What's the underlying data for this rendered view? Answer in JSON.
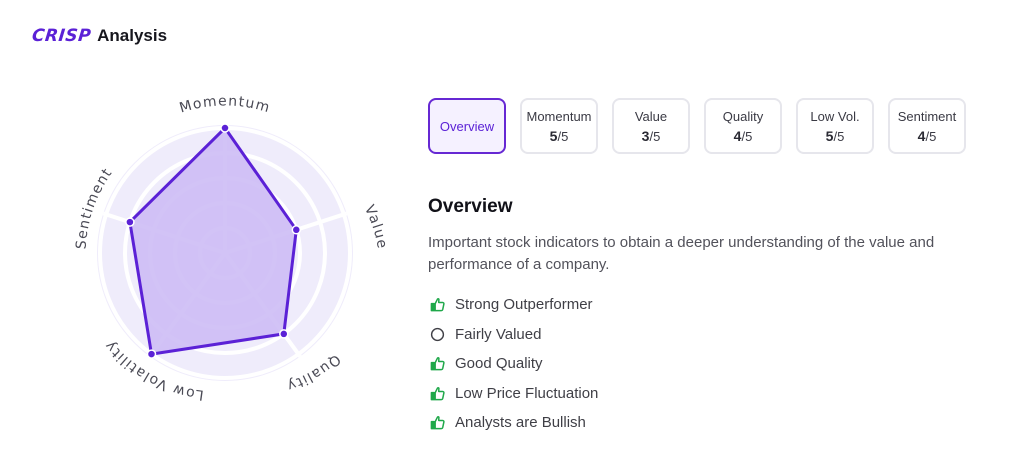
{
  "header": {
    "logo_text": "CRISP",
    "title": "Analysis"
  },
  "colors": {
    "accent": "#6628d3",
    "positive": "#1fa84a",
    "radar_fill": "#cdbdf5",
    "radar_bg": "#efecfb"
  },
  "radar": {
    "max_score": 5,
    "axes": [
      {
        "label": "Momentum",
        "score": 5
      },
      {
        "label": "Value",
        "score": 3
      },
      {
        "label": "Quality",
        "score": 4
      },
      {
        "label": "Low Volatility",
        "score": 5
      },
      {
        "label": "Sentiment",
        "score": 4
      }
    ]
  },
  "tabs": [
    {
      "label": "Overview",
      "score": "",
      "max": "",
      "active": true
    },
    {
      "label": "Momentum",
      "score": "5",
      "max": "/5",
      "active": false
    },
    {
      "label": "Value",
      "score": "3",
      "max": "/5",
      "active": false
    },
    {
      "label": "Quality",
      "score": "4",
      "max": "/5",
      "active": false
    },
    {
      "label": "Low Vol.",
      "score": "5",
      "max": "/5",
      "active": false
    },
    {
      "label": "Sentiment",
      "score": "4",
      "max": "/5",
      "active": false
    }
  ],
  "overview": {
    "title": "Overview",
    "description": "Important stock indicators to obtain a deeper understanding of the value and performance of a company.",
    "indicators": [
      {
        "text": "Strong Outperformer",
        "icon": "thumbs-up-icon"
      },
      {
        "text": "Fairly Valued",
        "icon": "circle-icon"
      },
      {
        "text": "Good Quality",
        "icon": "thumbs-up-icon"
      },
      {
        "text": "Low Price Fluctuation",
        "icon": "thumbs-up-icon"
      },
      {
        "text": "Analysts are Bullish",
        "icon": "thumbs-up-icon"
      }
    ]
  }
}
